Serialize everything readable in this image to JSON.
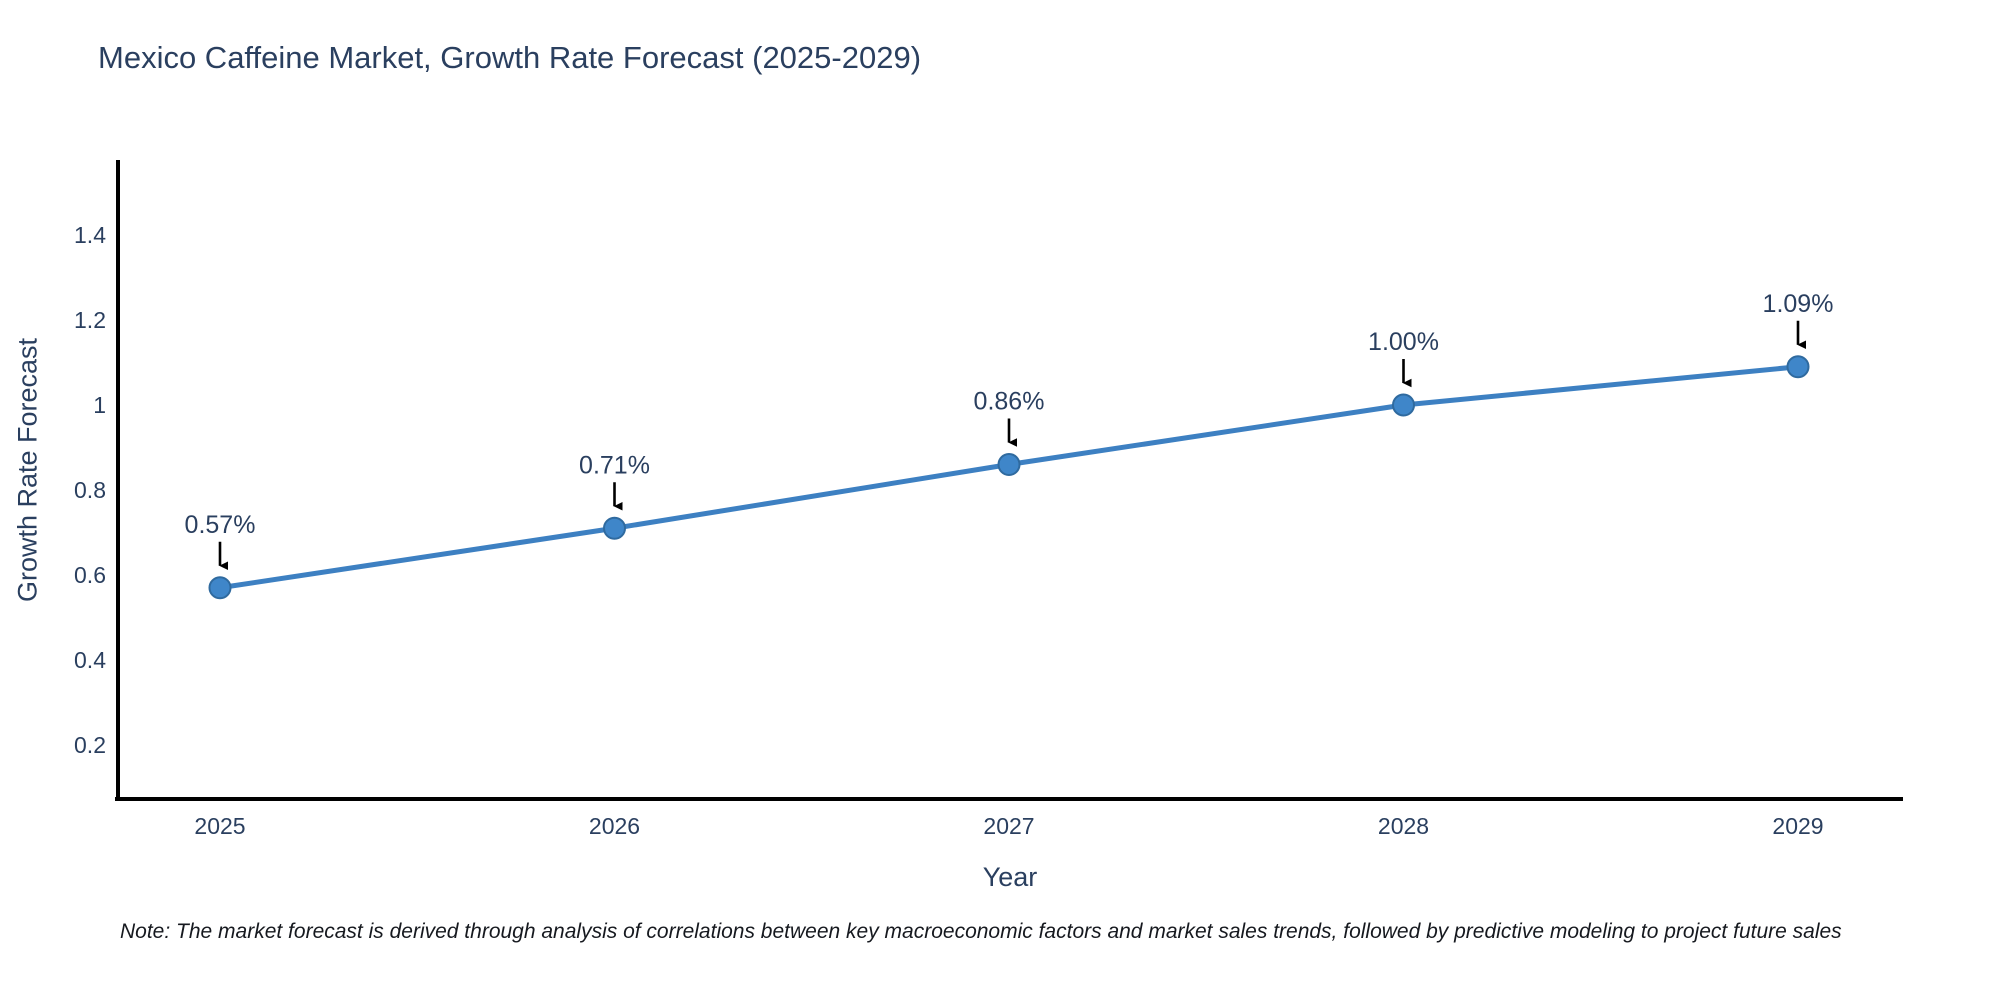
{
  "header": {
    "title": "Mexico Caffeine Market, Growth Rate Forecast (2025-2029)"
  },
  "chart_data": {
    "type": "line",
    "title": "Mexico Caffeine Market, Growth Rate Forecast (2025-2029)",
    "categories": [
      "2025",
      "2026",
      "2027",
      "2028",
      "2029"
    ],
    "series": [
      {
        "name": "Growth Rate Forecast",
        "values": [
          0.57,
          0.71,
          0.86,
          1.0,
          1.09
        ]
      }
    ],
    "point_labels": [
      "0.57%",
      "0.71%",
      "0.86%",
      "1.00%",
      "1.09%"
    ],
    "xlabel": "Year",
    "ylabel": "Growth Rate Forecast",
    "ylim": [
      0.08,
      1.66
    ],
    "yticks": [
      0.2,
      0.4,
      0.6,
      0.8,
      1,
      1.2,
      1.4
    ],
    "ytick_labels": [
      "0.2",
      "0.4",
      "0.6",
      "0.8",
      "1",
      "1.2",
      "1.4"
    ],
    "grid": false,
    "legend_position": "none",
    "annotations_have_arrows": true,
    "colors": {
      "line": "#3d80c2",
      "marker_fill": "#3f86c9",
      "marker_edge": "#2f6a9f",
      "axis_line": "#000000",
      "tick_text": "#2a3f5f",
      "annotation_text": "#2a3f5f",
      "annotation_arrow": "#000000",
      "title_text": "#2a3f5f"
    }
  },
  "footer": {
    "note": "Note: The market forecast is derived through analysis of correlations between key macroeconomic factors and market sales trends, followed by predictive modeling to project future sales"
  }
}
